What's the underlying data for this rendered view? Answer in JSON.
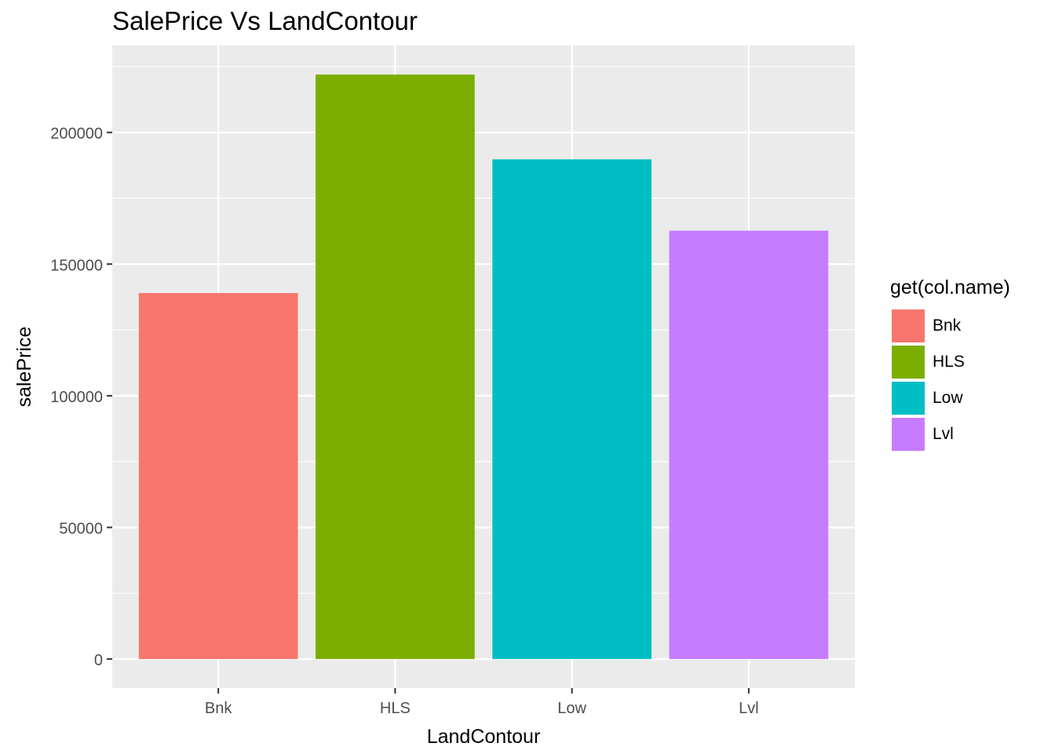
{
  "chart_data": {
    "type": "bar",
    "title": "SalePrice Vs LandContour",
    "xlabel": "LandContour",
    "ylabel": "salePrice",
    "categories": [
      "Bnk",
      "HLS",
      "Low",
      "Lvl"
    ],
    "values": [
      139000,
      222000,
      189800,
      162700
    ],
    "ylim": [
      -11000,
      233000
    ],
    "yticks": [
      0,
      50000,
      100000,
      150000,
      200000
    ],
    "ytick_labels": [
      "0",
      "50000",
      "100000",
      "150000",
      "200000"
    ],
    "grid": true,
    "background": "#EBEBEB",
    "colors": [
      "#F8766D",
      "#7CAE00",
      "#00BFC4",
      "#C77CFF"
    ],
    "legend": {
      "title": "get(col.name)",
      "position": "right",
      "items": [
        "Bnk",
        "HLS",
        "Low",
        "Lvl"
      ]
    }
  }
}
